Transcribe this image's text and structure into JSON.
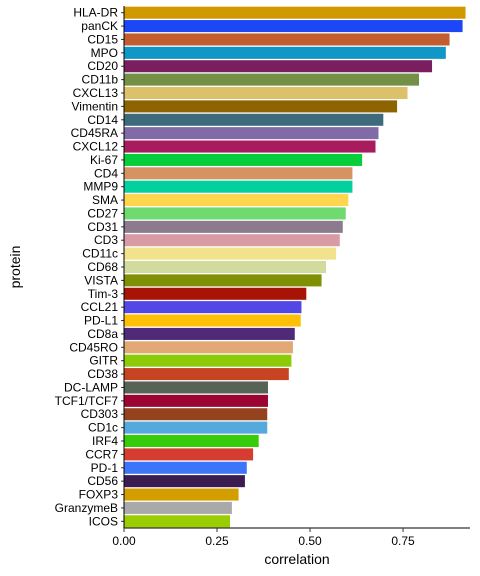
{
  "chart_data": {
    "type": "bar",
    "orientation": "horizontal",
    "xlabel": "correlation",
    "ylabel": "protein",
    "xlim": [
      0,
      0.93
    ],
    "xticks": [
      0.0,
      0.25,
      0.5,
      0.75
    ],
    "xtick_labels": [
      "0.00",
      "0.25",
      "0.50",
      "0.75"
    ],
    "grid": false,
    "legend": "none",
    "bars": [
      {
        "label": "HLA-DR",
        "value": 0.918,
        "color": "#D09900"
      },
      {
        "label": "panCK",
        "value": 0.91,
        "color": "#1C47F7"
      },
      {
        "label": "CD15",
        "value": 0.875,
        "color": "#C25D2F"
      },
      {
        "label": "MPO",
        "value": 0.865,
        "color": "#1097C8"
      },
      {
        "label": "CD20",
        "value": 0.828,
        "color": "#7A1E5F"
      },
      {
        "label": "CD11b",
        "value": 0.793,
        "color": "#749047"
      },
      {
        "label": "CXCL13",
        "value": 0.762,
        "color": "#DCC16A"
      },
      {
        "label": "Vimentin",
        "value": 0.734,
        "color": "#8E6301"
      },
      {
        "label": "CD14",
        "value": 0.697,
        "color": "#3F6A7B"
      },
      {
        "label": "CD45RA",
        "value": 0.684,
        "color": "#806BA6"
      },
      {
        "label": "CXCL12",
        "value": 0.676,
        "color": "#A81B5E"
      },
      {
        "label": "Ki-67",
        "value": 0.64,
        "color": "#06CD3A"
      },
      {
        "label": "CD4",
        "value": 0.614,
        "color": "#D49360"
      },
      {
        "label": "MMP9",
        "value": 0.614,
        "color": "#04CF9E"
      },
      {
        "label": "SMA",
        "value": 0.603,
        "color": "#FFD64D"
      },
      {
        "label": "CD27",
        "value": 0.596,
        "color": "#6FDA6F"
      },
      {
        "label": "CD31",
        "value": 0.588,
        "color": "#8C7B8E"
      },
      {
        "label": "CD3",
        "value": 0.58,
        "color": "#D89AA5"
      },
      {
        "label": "CD11c",
        "value": 0.57,
        "color": "#F0E38C"
      },
      {
        "label": "CD68",
        "value": 0.543,
        "color": "#D3DA9E"
      },
      {
        "label": "VISTA",
        "value": 0.531,
        "color": "#809004"
      },
      {
        "label": "Tim-3",
        "value": 0.49,
        "color": "#A71405"
      },
      {
        "label": "CCL21",
        "value": 0.477,
        "color": "#5347E6"
      },
      {
        "label": "PD-L1",
        "value": 0.475,
        "color": "#FEC007"
      },
      {
        "label": "CD8a",
        "value": 0.459,
        "color": "#4F2A78"
      },
      {
        "label": "CD45RO",
        "value": 0.454,
        "color": "#E2A975"
      },
      {
        "label": "GITR",
        "value": 0.45,
        "color": "#8DCA07"
      },
      {
        "label": "CD38",
        "value": 0.443,
        "color": "#C74423"
      },
      {
        "label": "DC-LAMP",
        "value": 0.387,
        "color": "#566457"
      },
      {
        "label": "TCF1/TCF7",
        "value": 0.387,
        "color": "#9C0533"
      },
      {
        "label": "CD303",
        "value": 0.385,
        "color": "#94431E"
      },
      {
        "label": "CD1c",
        "value": 0.385,
        "color": "#56A9DC"
      },
      {
        "label": "IRF4",
        "value": 0.362,
        "color": "#36CC0A"
      },
      {
        "label": "CCR7",
        "value": 0.347,
        "color": "#D53D31"
      },
      {
        "label": "PD-1",
        "value": 0.33,
        "color": "#3C75FA"
      },
      {
        "label": "CD56",
        "value": 0.325,
        "color": "#3B1C50"
      },
      {
        "label": "FOXP3",
        "value": 0.308,
        "color": "#D39E00"
      },
      {
        "label": "GranzymeB",
        "value": 0.29,
        "color": "#A9A9A9"
      },
      {
        "label": "ICOS",
        "value": 0.285,
        "color": "#9ACD02"
      }
    ]
  }
}
